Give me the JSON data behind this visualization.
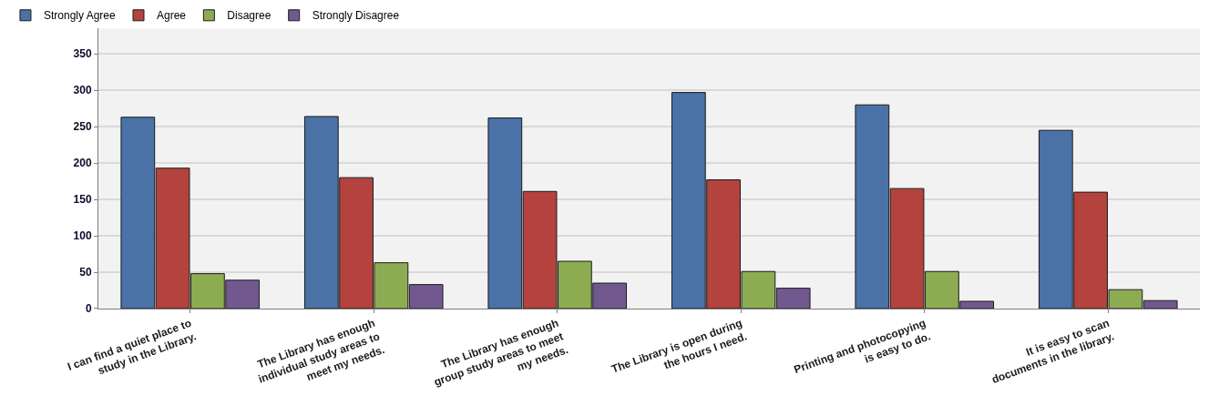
{
  "chart_data": {
    "type": "bar",
    "categories": [
      "I can find a quiet place to\nstudy in the Library.",
      "The Library has enough\nindividual study areas to\nmeet my needs.",
      "The Library has enough\ngroup study areas to meet\nmy needs.",
      "The Library is open during\nthe hours I need.",
      "Printing and photocopying\nis easy to do.",
      "It is easy to scan\ndocuments in the library."
    ],
    "series": [
      {
        "name": "Strongly Agree",
        "color": "#4a72a6",
        "values": [
          263,
          264,
          262,
          297,
          280,
          245
        ]
      },
      {
        "name": "Agree",
        "color": "#b4433f",
        "values": [
          193,
          180,
          161,
          177,
          165,
          160
        ]
      },
      {
        "name": "Disagree",
        "color": "#8dac52",
        "values": [
          48,
          63,
          65,
          51,
          51,
          26
        ]
      },
      {
        "name": "Strongly Disagree",
        "color": "#71598f",
        "values": [
          39,
          33,
          35,
          28,
          10,
          11
        ]
      }
    ],
    "ylim": [
      0,
      385
    ],
    "yticks": [
      0,
      50,
      100,
      150,
      200,
      250,
      300,
      350
    ],
    "grid": "y",
    "legend": "top left"
  }
}
